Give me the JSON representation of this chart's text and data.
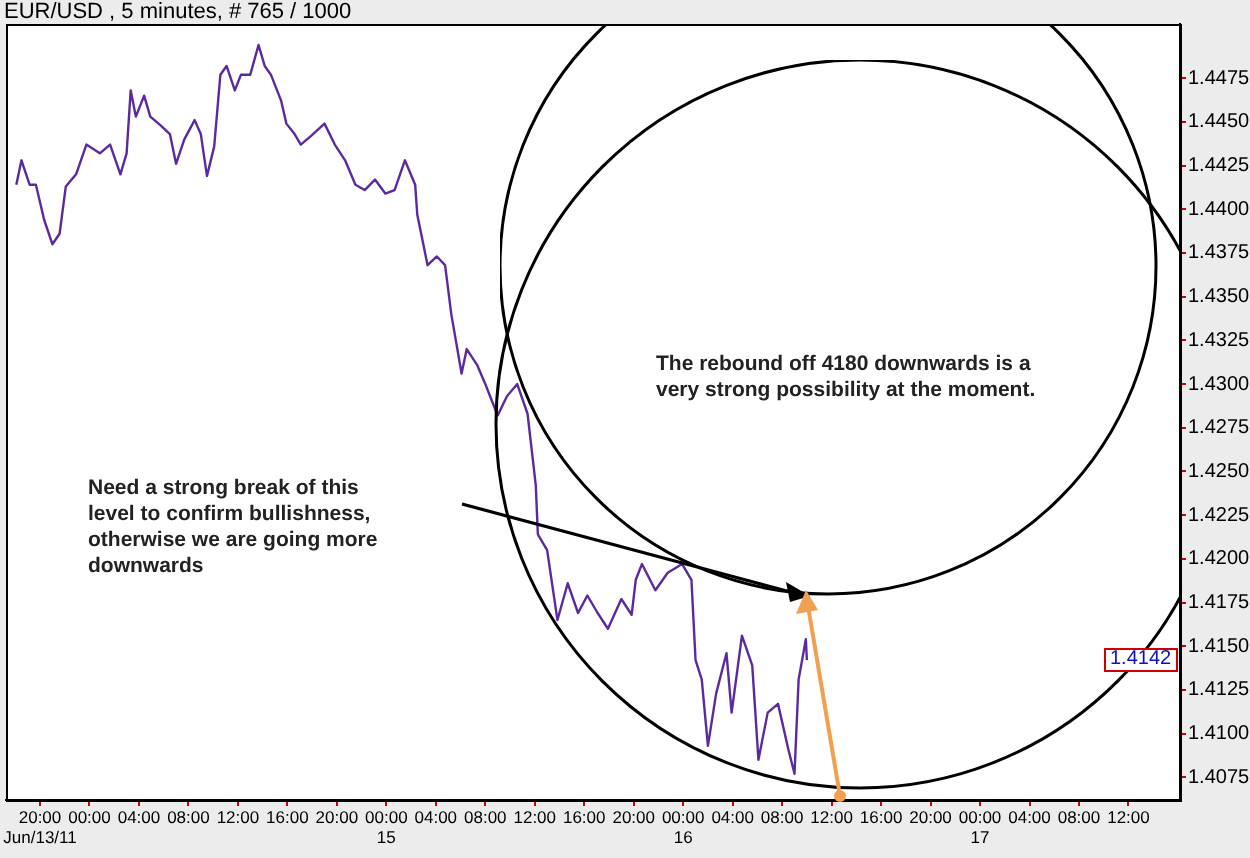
{
  "chart_data": {
    "type": "line",
    "title": "EUR/USD , 5 minutes, # 765 / 1000",
    "annotations": [
      "Need a strong break of this level to confirm bullishness, otherwise we are going more downwards",
      "The rebound off 4180 downwards is a very strong possibility at the moment.",
      {
        "text": "1.4142",
        "y": 1.4142
      }
    ],
    "x": [
      "--06-13T18:05",
      "--06-13T18:30",
      "--06-13T19:10",
      "--06-13T19:40",
      "--06-13T20:20",
      "--06-13T21:00",
      "--06-13T21:35",
      "--06-13T22:05",
      "--06-13T22:55",
      "--06-13T23:45",
      "--06-14T00:50",
      "--06-14T01:40",
      "--06-14T02:30",
      "--06-14T03:00",
      "--06-14T03:20",
      "--06-14T03:45",
      "--06-14T04:25",
      "--06-14T04:55",
      "--06-14T05:45",
      "--06-14T06:30",
      "--06-14T07:00",
      "--06-14T07:40",
      "--06-14T08:30",
      "--06-14T09:00",
      "--06-14T09:30",
      "--06-14T10:05",
      "--06-14T10:35",
      "--06-14T11:05",
      "--06-14T11:45",
      "--06-14T12:15",
      "--06-14T13:00",
      "--06-14T13:40",
      "--06-14T14:10",
      "--06-14T14:40",
      "--06-14T15:30",
      "--06-14T15:55",
      "--06-14T16:35",
      "--06-14T17:05",
      "--06-14T17:55",
      "--06-14T19:00",
      "--06-14T19:50",
      "--06-14T20:40",
      "--06-14T21:30",
      "--06-14T22:15",
      "--06-14T23:05",
      "--06-14T23:55",
      "--06-15T00:40",
      "--06-15T01:30",
      "--06-15T02:20",
      "--06-15T02:30",
      "--06-15T03:20",
      "--06-15T04:05",
      "--06-15T04:45",
      "--06-15T05:15",
      "--06-15T06:05",
      "--06-15T06:30",
      "--06-15T07:20",
      "--06-15T08:00",
      "--06-15T09:00",
      "--06-15T09:45",
      "--06-15T10:35",
      "--06-15T11:25",
      "--06-15T12:05",
      "--06-15T12:15",
      "--06-15T13:00",
      "--06-15T13:50",
      "--06-15T14:40",
      "--06-15T15:30",
      "--06-15T16:15",
      "--06-15T17:05",
      "--06-15T17:55",
      "--06-15T19:00",
      "--06-15T19:50",
      "--06-15T20:10",
      "--06-15T20:40",
      "--06-15T21:45",
      "--06-15T22:45",
      "--06-15T23:55",
      "--06-16T00:40",
      "--06-16T01:00",
      "--06-16T01:30",
      "--06-16T02:00",
      "--06-16T02:40",
      "--06-16T03:30",
      "--06-16T03:55",
      "--06-16T04:45",
      "--06-16T05:35",
      "--06-16T06:05",
      "--06-16T06:50",
      "--06-16T07:40",
      "--06-16T08:30",
      "--06-16T09:00",
      "--06-16T09:20",
      "--06-16T09:55",
      "--06-16T10:00"
    ],
    "values": [
      1.4414,
      1.4428,
      1.4414,
      1.4414,
      1.4394,
      1.438,
      1.4386,
      1.4413,
      1.442,
      1.4437,
      1.4432,
      1.4437,
      1.442,
      1.4432,
      1.4468,
      1.4453,
      1.4465,
      1.4453,
      1.4448,
      1.4443,
      1.4426,
      1.444,
      1.4451,
      1.4443,
      1.4419,
      1.4436,
      1.4477,
      1.4482,
      1.4468,
      1.4477,
      1.4477,
      1.4494,
      1.4482,
      1.4477,
      1.4462,
      1.4449,
      1.4443,
      1.4437,
      1.4442,
      1.4449,
      1.4437,
      1.4428,
      1.4414,
      1.4411,
      1.4417,
      1.4409,
      1.4411,
      1.4428,
      1.4414,
      1.4397,
      1.4368,
      1.4373,
      1.4368,
      1.434,
      1.4306,
      1.432,
      1.4311,
      1.43,
      1.4282,
      1.4293,
      1.43,
      1.4283,
      1.4242,
      1.4214,
      1.4205,
      1.4165,
      1.4186,
      1.4169,
      1.4179,
      1.4169,
      1.416,
      1.4177,
      1.4168,
      1.4188,
      1.4197,
      1.4182,
      1.4192,
      1.4197,
      1.4188,
      1.4142,
      1.4131,
      1.4093,
      1.4123,
      1.4146,
      1.4112,
      1.4156,
      1.4139,
      1.4085,
      1.4112,
      1.4117,
      1.4091,
      1.4077,
      1.4131,
      1.4154,
      1.4142
    ],
    "color": "#5a2a9e",
    "marker": "none",
    "line_style": "solid",
    "grid": false,
    "legend": false,
    "xlim": [
      "--06-13T17:15",
      "--06-17T16:10"
    ],
    "xticks": [
      {
        "value": "--06-13T20:00",
        "label": "20:00\nJun/13/11"
      },
      {
        "value": "--06-14T00:00",
        "label": "00:00"
      },
      {
        "value": "--06-14T04:00",
        "label": "04:00"
      },
      {
        "value": "--06-14T08:00",
        "label": "08:00"
      },
      {
        "value": "--06-14T12:00",
        "label": "12:00"
      },
      {
        "value": "--06-14T16:00",
        "label": "16:00"
      },
      {
        "value": "--06-14T20:00",
        "label": "20:00"
      },
      {
        "value": "--06-15T00:00",
        "label": "00:00\n15"
      },
      {
        "value": "--06-15T04:00",
        "label": "04:00"
      },
      {
        "value": "--06-15T08:00",
        "label": "08:00"
      },
      {
        "value": "--06-15T12:00",
        "label": "12:00"
      },
      {
        "value": "--06-15T16:00",
        "label": "16:00"
      },
      {
        "value": "--06-15T20:00",
        "label": "20:00"
      },
      {
        "value": "--06-16T00:00",
        "label": "00:00\n16"
      },
      {
        "value": "--06-16T04:00",
        "label": "04:00"
      },
      {
        "value": "--06-16T08:00",
        "label": "08:00"
      },
      {
        "value": "--06-16T12:00",
        "label": "12:00"
      },
      {
        "value": "--06-16T16:00",
        "label": "16:00"
      },
      {
        "value": "--06-16T20:00",
        "label": "20:00"
      },
      {
        "value": "--06-17T00:00",
        "label": "00:00\n17"
      },
      {
        "value": "--06-17T04:00",
        "label": "04:00"
      },
      {
        "value": "--06-17T08:00",
        "label": "08:00"
      },
      {
        "value": "--06-17T12:00",
        "label": "12:00"
      }
    ],
    "ylim": [
      1.4062,
      1.4506
    ],
    "yticks": [
      1.4075,
      {
        "value": 1.41,
        "label": "1.4100"
      },
      1.4125,
      {
        "value": 1.415,
        "label": "1.4150"
      },
      1.4175,
      {
        "value": 1.42,
        "label": "1.4200"
      },
      1.4225,
      {
        "value": 1.425,
        "label": "1.4250"
      },
      1.4275,
      {
        "value": 1.43,
        "label": "1.4300"
      },
      1.4325,
      {
        "value": 1.435,
        "label": "1.4350"
      },
      1.4375,
      {
        "value": 1.44,
        "label": "1.4400"
      },
      1.4425,
      {
        "value": 1.445,
        "label": "1.4450"
      },
      1.4475
    ]
  }
}
